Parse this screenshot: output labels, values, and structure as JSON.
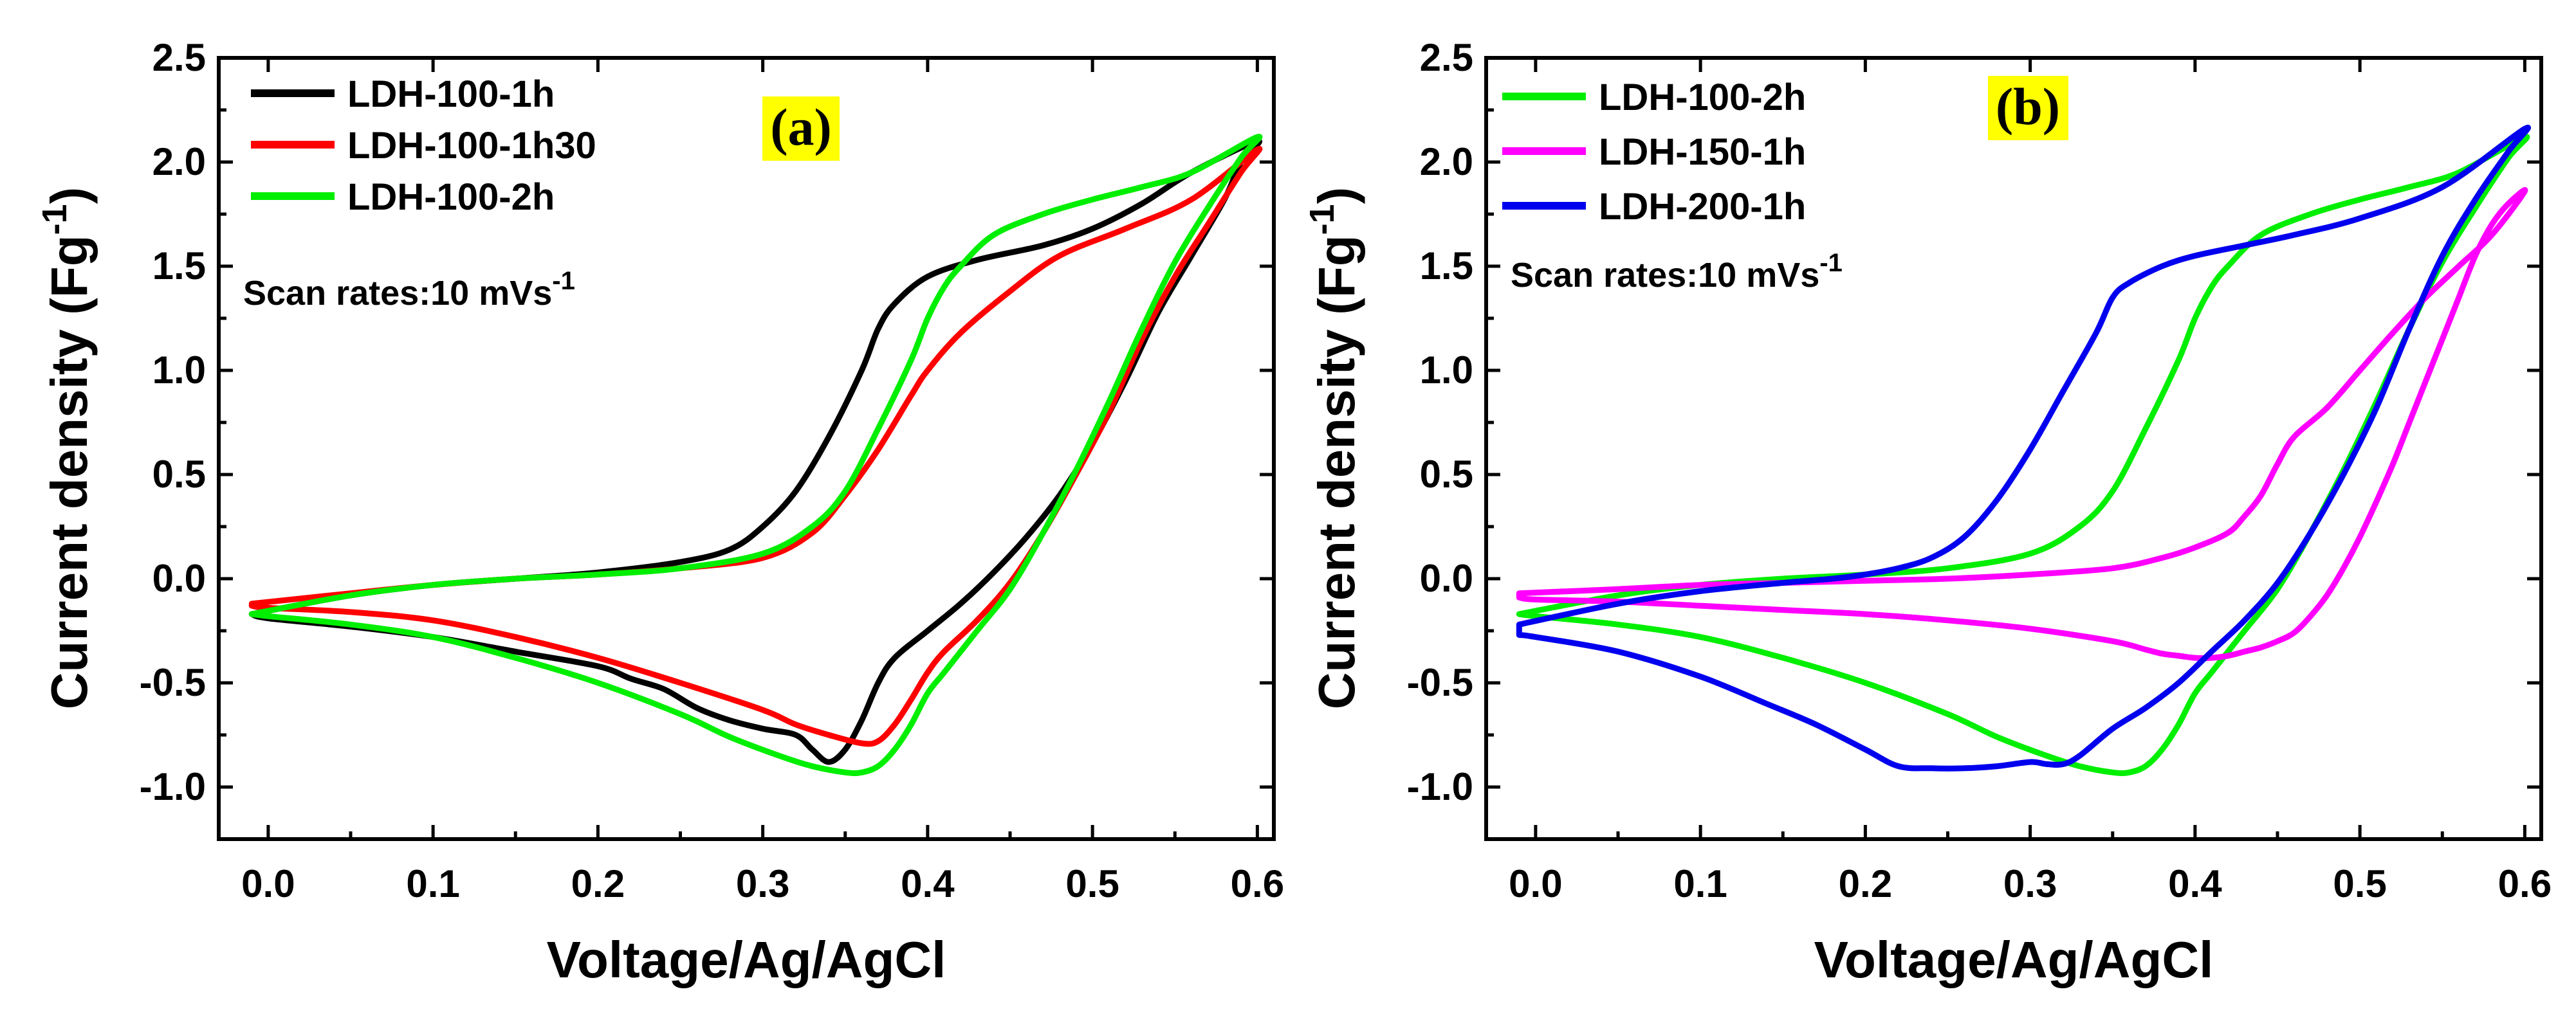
{
  "figure": {
    "background": "#ffffff",
    "label_highlight": "#ffff00"
  },
  "chart_data": [
    {
      "panel": "(a)",
      "type": "line",
      "title": "",
      "xlabel": "Voltage/Ag/AgCl",
      "ylabel": "Current density (Fg",
      "ylabel_sup": "-1",
      "ylabel_end": ")",
      "xlim": [
        -0.03,
        0.61
      ],
      "ylim": [
        -1.25,
        2.5
      ],
      "xticks": [
        0.0,
        0.1,
        0.2,
        0.3,
        0.4,
        0.5,
        0.6
      ],
      "xtick_labels": [
        "0.0",
        "0.1",
        "0.2",
        "0.3",
        "0.4",
        "0.5",
        "0.6"
      ],
      "yticks": [
        -1.0,
        -0.5,
        0.0,
        0.5,
        1.0,
        1.5,
        2.0,
        2.5
      ],
      "ytick_labels": [
        "-1.0",
        "-0.5",
        "0.0",
        "0.5",
        "1.0",
        "1.5",
        "2.0",
        "2.5"
      ],
      "annotation": {
        "text": "Scan rates:10 mVs",
        "sup": "-1"
      },
      "legend_position": "top-left",
      "series": [
        {
          "name": "LDH-100-1h",
          "color": "#000000",
          "x": [
            -0.01,
            0.05,
            0.1,
            0.15,
            0.2,
            0.25,
            0.28,
            0.3,
            0.32,
            0.34,
            0.36,
            0.37,
            0.38,
            0.4,
            0.43,
            0.47,
            0.5,
            0.53,
            0.56,
            0.6,
            0.59,
            0.58,
            0.56,
            0.54,
            0.52,
            0.5,
            0.48,
            0.46,
            0.44,
            0.42,
            0.4,
            0.38,
            0.37,
            0.36,
            0.35,
            0.34,
            0.33,
            0.32,
            0.3,
            0.28,
            0.26,
            0.24,
            0.22,
            0.2,
            0.15,
            0.1,
            0.05,
            0.0,
            -0.01
          ],
          "y": [
            -0.17,
            -0.08,
            -0.03,
            0.0,
            0.03,
            0.08,
            0.14,
            0.25,
            0.42,
            0.68,
            1.0,
            1.2,
            1.32,
            1.45,
            1.53,
            1.6,
            1.68,
            1.8,
            1.95,
            2.1,
            2.0,
            1.82,
            1.55,
            1.28,
            0.95,
            0.65,
            0.4,
            0.2,
            0.03,
            -0.12,
            -0.25,
            -0.38,
            -0.5,
            -0.68,
            -0.82,
            -0.88,
            -0.82,
            -0.75,
            -0.72,
            -0.68,
            -0.62,
            -0.53,
            -0.48,
            -0.42,
            -0.35,
            -0.28,
            -0.23,
            -0.19,
            -0.17
          ]
        },
        {
          "name": "LDH-100-1h30",
          "color": "#ff0000",
          "x": [
            -0.01,
            0.05,
            0.1,
            0.15,
            0.2,
            0.25,
            0.3,
            0.33,
            0.35,
            0.37,
            0.39,
            0.4,
            0.42,
            0.45,
            0.48,
            0.52,
            0.56,
            0.6,
            0.59,
            0.57,
            0.55,
            0.53,
            0.51,
            0.49,
            0.47,
            0.45,
            0.43,
            0.41,
            0.4,
            0.39,
            0.38,
            0.37,
            0.36,
            0.34,
            0.32,
            0.3,
            0.25,
            0.2,
            0.15,
            0.1,
            0.05,
            0.0,
            -0.01
          ],
          "y": [
            -0.12,
            -0.07,
            -0.03,
            0.0,
            0.02,
            0.05,
            0.1,
            0.22,
            0.4,
            0.62,
            0.88,
            1.0,
            1.18,
            1.38,
            1.55,
            1.68,
            1.82,
            2.06,
            1.95,
            1.7,
            1.45,
            1.15,
            0.8,
            0.5,
            0.22,
            -0.02,
            -0.2,
            -0.35,
            -0.45,
            -0.58,
            -0.7,
            -0.78,
            -0.79,
            -0.75,
            -0.7,
            -0.63,
            -0.5,
            -0.38,
            -0.28,
            -0.2,
            -0.16,
            -0.14,
            -0.13
          ]
        },
        {
          "name": "LDH-100-2h",
          "color": "#00ee00",
          "x": [
            -0.01,
            0.05,
            0.1,
            0.15,
            0.2,
            0.25,
            0.3,
            0.33,
            0.35,
            0.37,
            0.39,
            0.4,
            0.41,
            0.42,
            0.44,
            0.47,
            0.5,
            0.53,
            0.56,
            0.6,
            0.59,
            0.57,
            0.55,
            0.53,
            0.51,
            0.49,
            0.47,
            0.45,
            0.43,
            0.41,
            0.4,
            0.39,
            0.38,
            0.37,
            0.36,
            0.35,
            0.33,
            0.31,
            0.28,
            0.25,
            0.2,
            0.15,
            0.1,
            0.05,
            0.0,
            -0.01
          ],
          "y": [
            -0.17,
            -0.08,
            -0.03,
            0.0,
            0.02,
            0.05,
            0.12,
            0.25,
            0.42,
            0.72,
            1.05,
            1.25,
            1.4,
            1.5,
            1.65,
            1.75,
            1.82,
            1.88,
            1.95,
            2.12,
            2.02,
            1.78,
            1.52,
            1.2,
            0.85,
            0.52,
            0.22,
            -0.05,
            -0.25,
            -0.45,
            -0.55,
            -0.7,
            -0.82,
            -0.9,
            -0.93,
            -0.93,
            -0.9,
            -0.85,
            -0.76,
            -0.65,
            -0.5,
            -0.38,
            -0.28,
            -0.22,
            -0.18,
            -0.17
          ]
        }
      ]
    },
    {
      "panel": "(b)",
      "type": "line",
      "title": "",
      "xlabel": "Voltage/Ag/AgCl",
      "ylabel": "Current density (Fg",
      "ylabel_sup": "-1",
      "ylabel_end": ")",
      "xlim": [
        -0.03,
        0.61
      ],
      "ylim": [
        -1.25,
        2.5
      ],
      "xticks": [
        0.0,
        0.1,
        0.2,
        0.3,
        0.4,
        0.5,
        0.6
      ],
      "xtick_labels": [
        "0.0",
        "0.1",
        "0.2",
        "0.3",
        "0.4",
        "0.5",
        "0.6"
      ],
      "yticks": [
        -1.0,
        -0.5,
        0.0,
        0.5,
        1.0,
        1.5,
        2.0,
        2.5
      ],
      "ytick_labels": [
        "-1.0",
        "-0.5",
        "0.0",
        "0.5",
        "1.0",
        "1.5",
        "2.0",
        "2.5"
      ],
      "annotation": {
        "text": "Scan rates:10 mVs",
        "sup": "-1"
      },
      "legend_position": "top-left",
      "series": [
        {
          "name": "LDH-100-2h",
          "color": "#00ee00",
          "x": [
            -0.01,
            0.05,
            0.1,
            0.15,
            0.2,
            0.25,
            0.3,
            0.33,
            0.35,
            0.37,
            0.39,
            0.4,
            0.41,
            0.42,
            0.44,
            0.47,
            0.5,
            0.53,
            0.56,
            0.6,
            0.59,
            0.57,
            0.55,
            0.53,
            0.51,
            0.49,
            0.47,
            0.45,
            0.43,
            0.41,
            0.4,
            0.39,
            0.38,
            0.37,
            0.36,
            0.35,
            0.33,
            0.31,
            0.28,
            0.25,
            0.2,
            0.15,
            0.1,
            0.05,
            0.0,
            -0.01
          ],
          "y": [
            -0.17,
            -0.08,
            -0.03,
            0.0,
            0.02,
            0.05,
            0.12,
            0.25,
            0.42,
            0.72,
            1.05,
            1.25,
            1.4,
            1.5,
            1.65,
            1.75,
            1.82,
            1.88,
            1.95,
            2.12,
            2.02,
            1.78,
            1.52,
            1.2,
            0.85,
            0.52,
            0.22,
            -0.05,
            -0.25,
            -0.45,
            -0.55,
            -0.7,
            -0.82,
            -0.9,
            -0.93,
            -0.93,
            -0.9,
            -0.85,
            -0.76,
            -0.65,
            -0.5,
            -0.38,
            -0.28,
            -0.22,
            -0.18,
            -0.17
          ]
        },
        {
          "name": "LDH-150-1h",
          "color": "#ff00ff",
          "x": [
            -0.01,
            0.05,
            0.1,
            0.15,
            0.2,
            0.25,
            0.3,
            0.35,
            0.38,
            0.4,
            0.42,
            0.43,
            0.44,
            0.45,
            0.46,
            0.48,
            0.5,
            0.52,
            0.54,
            0.56,
            0.58,
            0.6,
            0.59,
            0.58,
            0.57,
            0.56,
            0.55,
            0.54,
            0.53,
            0.52,
            0.51,
            0.5,
            0.49,
            0.48,
            0.47,
            0.46,
            0.45,
            0.44,
            0.43,
            0.42,
            0.41,
            0.4,
            0.39,
            0.38,
            0.37,
            0.35,
            0.3,
            0.25,
            0.2,
            0.15,
            0.1,
            0.05,
            0.0,
            -0.01
          ],
          "y": [
            -0.07,
            -0.05,
            -0.03,
            -0.02,
            -0.01,
            0.0,
            0.02,
            0.05,
            0.1,
            0.15,
            0.22,
            0.3,
            0.4,
            0.55,
            0.68,
            0.82,
            1.0,
            1.18,
            1.35,
            1.5,
            1.65,
            1.86,
            1.8,
            1.7,
            1.55,
            1.35,
            1.15,
            0.95,
            0.75,
            0.55,
            0.37,
            0.2,
            0.05,
            -0.08,
            -0.18,
            -0.26,
            -0.3,
            -0.33,
            -0.35,
            -0.37,
            -0.38,
            -0.38,
            -0.37,
            -0.36,
            -0.34,
            -0.3,
            -0.24,
            -0.2,
            -0.17,
            -0.15,
            -0.13,
            -0.11,
            -0.1,
            -0.09
          ]
        },
        {
          "name": "LDH-200-1h",
          "color": "#0000ee",
          "x": [
            -0.01,
            0.05,
            0.1,
            0.15,
            0.18,
            0.2,
            0.22,
            0.24,
            0.26,
            0.28,
            0.3,
            0.32,
            0.34,
            0.35,
            0.36,
            0.38,
            0.4,
            0.43,
            0.46,
            0.5,
            0.55,
            0.6,
            0.59,
            0.57,
            0.55,
            0.53,
            0.51,
            0.49,
            0.47,
            0.45,
            0.43,
            0.41,
            0.39,
            0.37,
            0.35,
            0.33,
            0.32,
            0.31,
            0.3,
            0.28,
            0.26,
            0.24,
            0.22,
            0.2,
            0.17,
            0.14,
            0.1,
            0.05,
            0.0,
            -0.01
          ],
          "y": [
            -0.22,
            -0.12,
            -0.06,
            -0.02,
            0.0,
            0.02,
            0.05,
            0.1,
            0.2,
            0.38,
            0.62,
            0.9,
            1.18,
            1.35,
            1.42,
            1.5,
            1.55,
            1.6,
            1.65,
            1.73,
            1.88,
            2.16,
            2.05,
            1.82,
            1.55,
            1.2,
            0.82,
            0.5,
            0.22,
            -0.02,
            -0.2,
            -0.35,
            -0.5,
            -0.62,
            -0.72,
            -0.85,
            -0.89,
            -0.89,
            -0.88,
            -0.9,
            -0.91,
            -0.91,
            -0.9,
            -0.82,
            -0.7,
            -0.6,
            -0.47,
            -0.35,
            -0.28,
            -0.27
          ]
        }
      ]
    }
  ]
}
